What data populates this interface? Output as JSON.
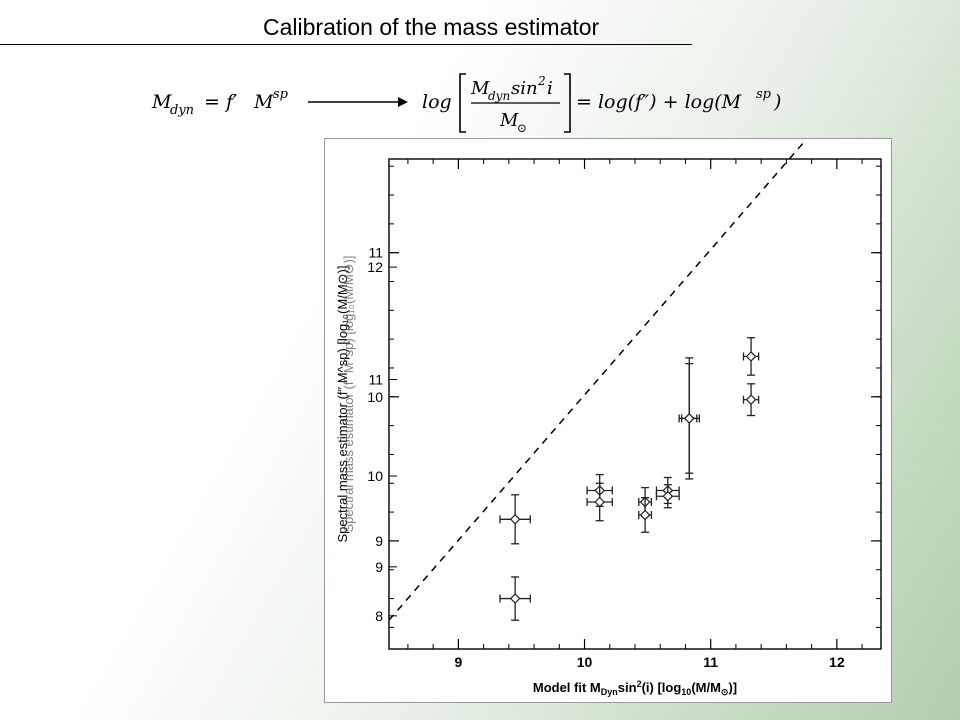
{
  "slide": {
    "title": "Calibration of the mass estimator"
  },
  "equation": {
    "lhs_symbol": "M",
    "lhs_sub": "dyn",
    "equals": "=",
    "f_prime": "f′",
    "m_symbol": "M",
    "m_sup": "sp",
    "log_word": "log",
    "frac_num_m": "M",
    "frac_num_sub": "dyn",
    "frac_num_sin": "sin",
    "frac_num_sup": "2",
    "frac_num_i": "i",
    "frac_den_m": "M",
    "frac_den_sub": "⊙",
    "rhs": "= log(f″) + log(M",
    "rhs_sup": "sp",
    "rhs_close": ")"
  },
  "chart_data": {
    "type": "scatter",
    "xlabel": "Model fit M_Dyn sin²(i) [log₁₀(M/M⊙)]",
    "ylabel": "Spectral mass estimator (f″ M^sp) [log₁₀(M/M⊙)]",
    "xlim": [
      8.45,
      12.35
    ],
    "ylim": [
      8.25,
      11.65
    ],
    "x_ticks": [
      "9",
      "10",
      "11",
      "12"
    ],
    "y_ticks_set_a": [
      "9",
      "10",
      "11"
    ],
    "y_ticks_set_b": [
      "8",
      "9",
      "10",
      "11",
      "12"
    ],
    "reference_line": "1:1 (dashed)",
    "points": [
      {
        "x": 9.45,
        "y": 9.15,
        "xerr": 0.12,
        "yerr": 0.17
      },
      {
        "x": 9.45,
        "y": 8.6,
        "xerr": 0.12,
        "yerr": 0.15
      },
      {
        "x": 10.12,
        "y": 9.35,
        "xerr": 0.1,
        "yerr": 0.11
      },
      {
        "x": 10.12,
        "y": 9.27,
        "xerr": 0.1,
        "yerr": 0.13
      },
      {
        "x": 10.48,
        "y": 9.27,
        "xerr": 0.05,
        "yerr": 0.1
      },
      {
        "x": 10.48,
        "y": 9.18,
        "xerr": 0.05,
        "yerr": 0.12
      },
      {
        "x": 10.66,
        "y": 9.35,
        "xerr": 0.09,
        "yerr": 0.09
      },
      {
        "x": 10.66,
        "y": 9.31,
        "xerr": 0.09,
        "yerr": 0.08
      },
      {
        "x": 10.83,
        "y": 9.85,
        "xerr": 0.08,
        "yerr": 0.42
      },
      {
        "x": 10.83,
        "y": 9.85,
        "xerr": 0.06,
        "yerr": 0.38
      },
      {
        "x": 11.32,
        "y": 10.28,
        "xerr": 0.06,
        "yerr": 0.13
      },
      {
        "x": 11.32,
        "y": 9.98,
        "xerr": 0.06,
        "yerr": 0.11
      }
    ]
  }
}
